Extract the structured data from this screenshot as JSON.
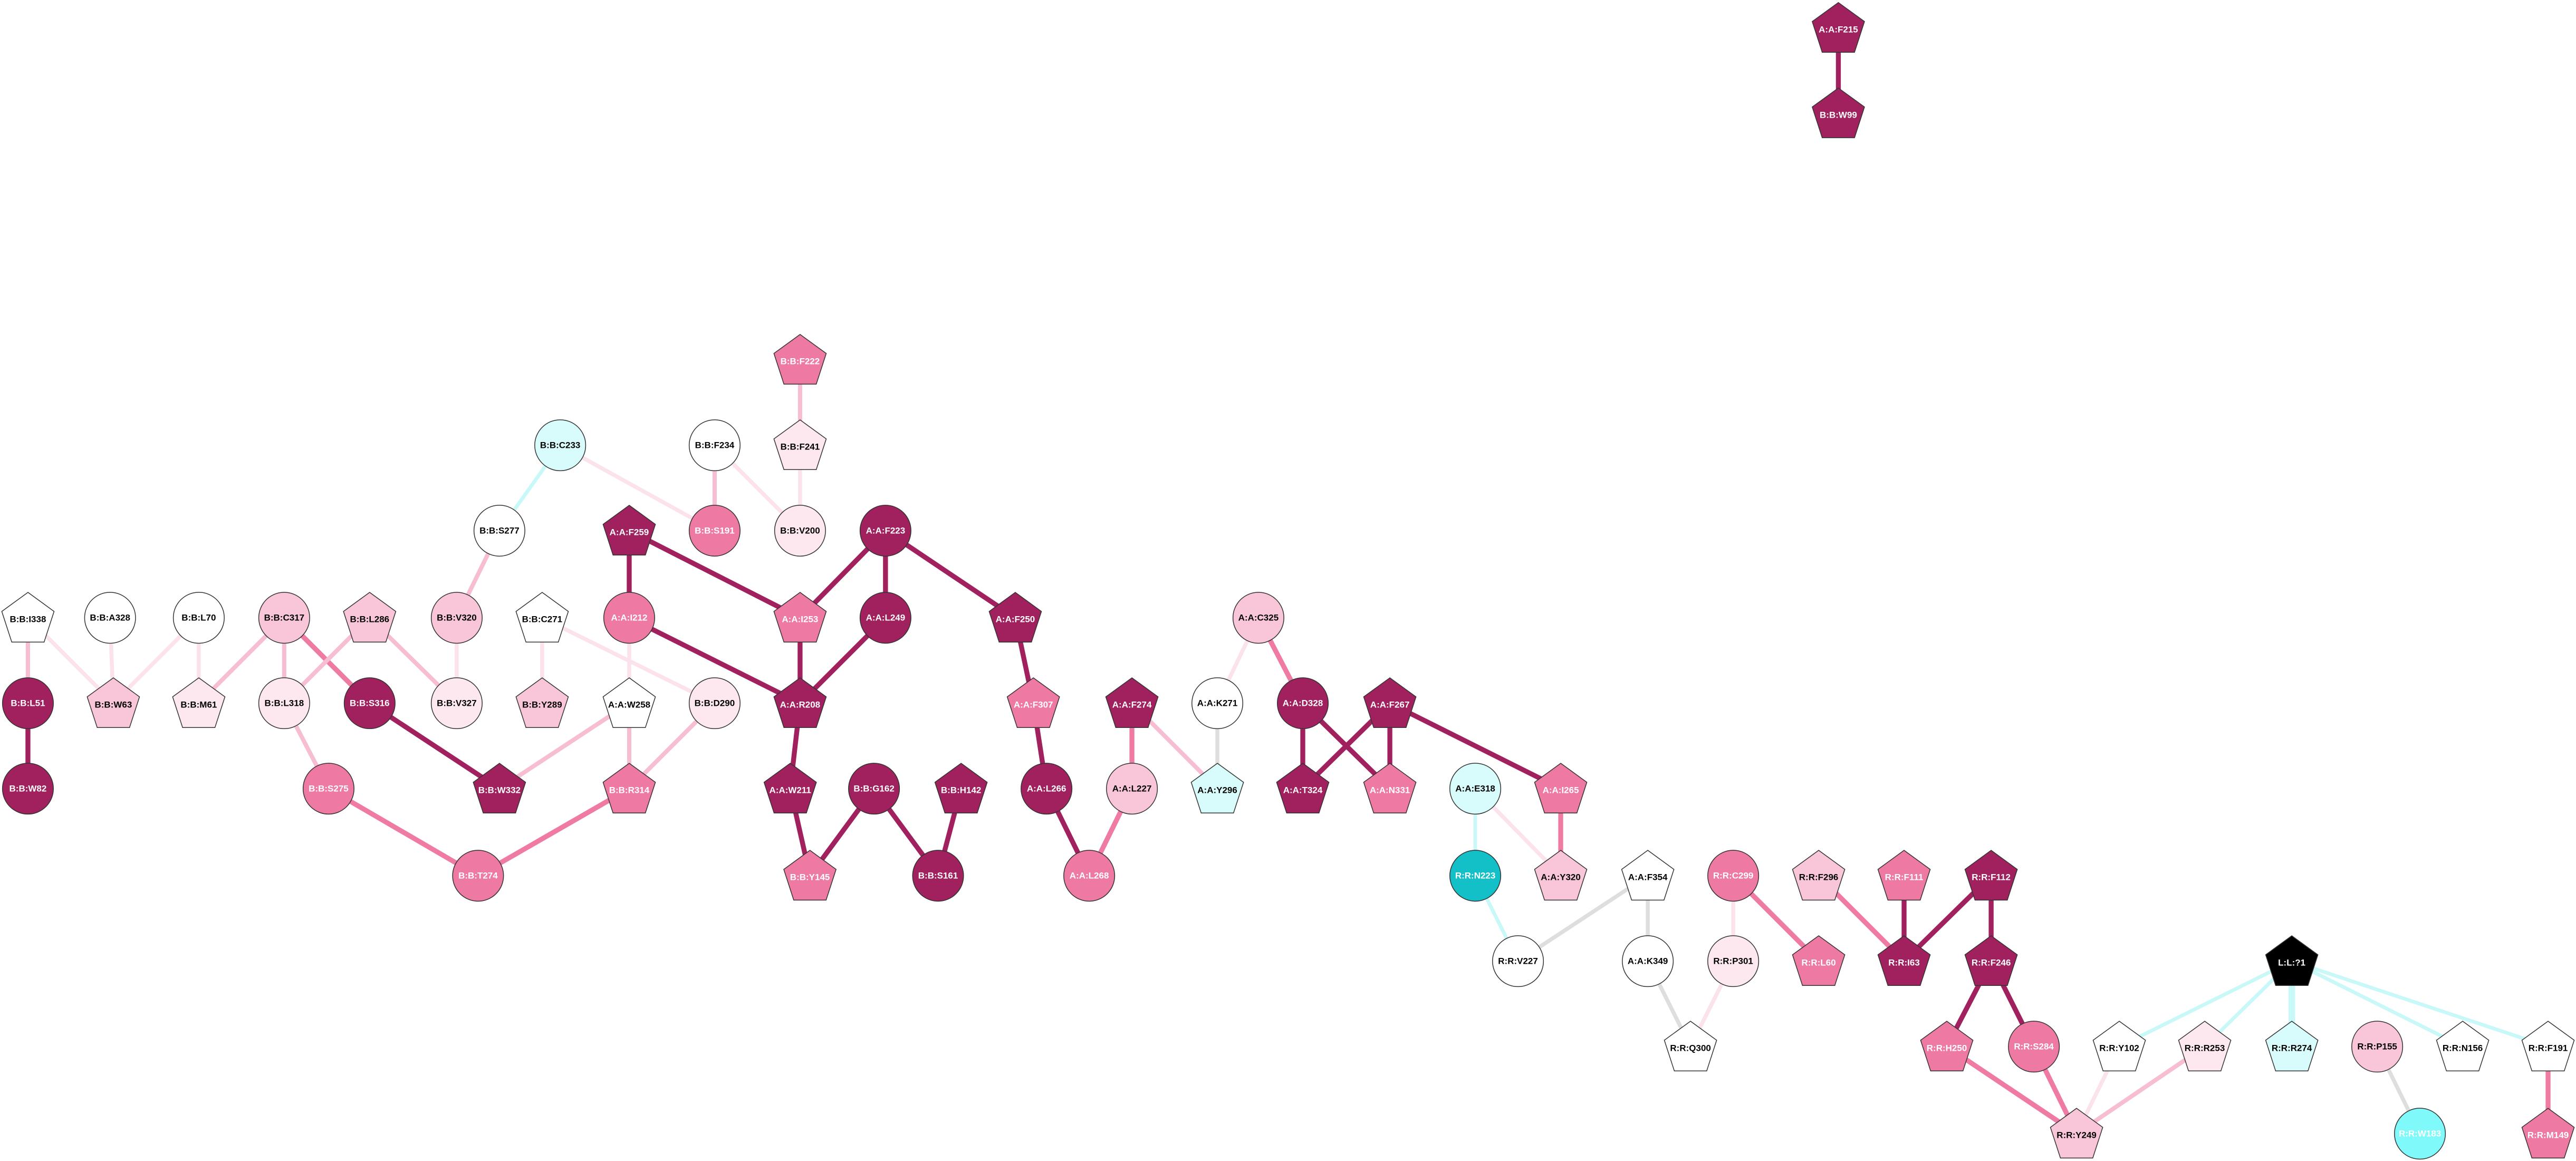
{
  "nodes": [
    "A:A:F215",
    "B:B:W99",
    "B:B:F222",
    "B:B:C233",
    "B:B:F234",
    "B:B:F241",
    "B:B:S277",
    "A:A:F259",
    "B:B:S191",
    "B:B:V200",
    "A:A:F223",
    "B:B:I338",
    "B:B:A328",
    "B:B:L70",
    "B:B:C317",
    "B:B:L286",
    "B:B:V320",
    "B:B:C271",
    "A:A:I212",
    "A:A:I253",
    "A:A:L249",
    "A:A:F250",
    "A:A:C325",
    "B:B:L51",
    "B:B:W63",
    "B:B:M61",
    "B:B:L318",
    "B:B:S316",
    "B:B:V327",
    "B:B:Y289",
    "A:A:W258",
    "B:B:D290",
    "A:A:R208",
    "A:A:F307",
    "A:A:F274",
    "A:A:K271",
    "A:A:D328",
    "A:A:F267",
    "B:B:W82",
    "B:B:S275",
    "B:B:W332",
    "B:B:R314",
    "A:A:W211",
    "B:B:G162",
    "B:B:H142",
    "A:A:L266",
    "A:A:L227",
    "A:A:Y296",
    "A:A:T324",
    "A:A:N331",
    "A:A:E318",
    "A:A:I265",
    "B:B:T274",
    "B:B:Y145",
    "B:B:S161",
    "A:A:L268",
    "R:R:N223",
    "A:A:Y320",
    "A:A:F354",
    "R:R:C299",
    "R:R:F296",
    "R:R:F111",
    "R:R:F112",
    "R:R:V227",
    "A:A:K349",
    "R:R:P301",
    "R:R:L60",
    "R:R:I63",
    "R:R:F246",
    "L:L:?1",
    "R:R:Q300",
    "R:R:H250",
    "R:R:S284",
    "R:R:Y102",
    "R:R:R253",
    "R:R:R274",
    "R:R:P155",
    "R:R:N156",
    "R:R:F191",
    "R:R:Y249",
    "R:R:W183",
    "R:R:M149"
  ]
}
